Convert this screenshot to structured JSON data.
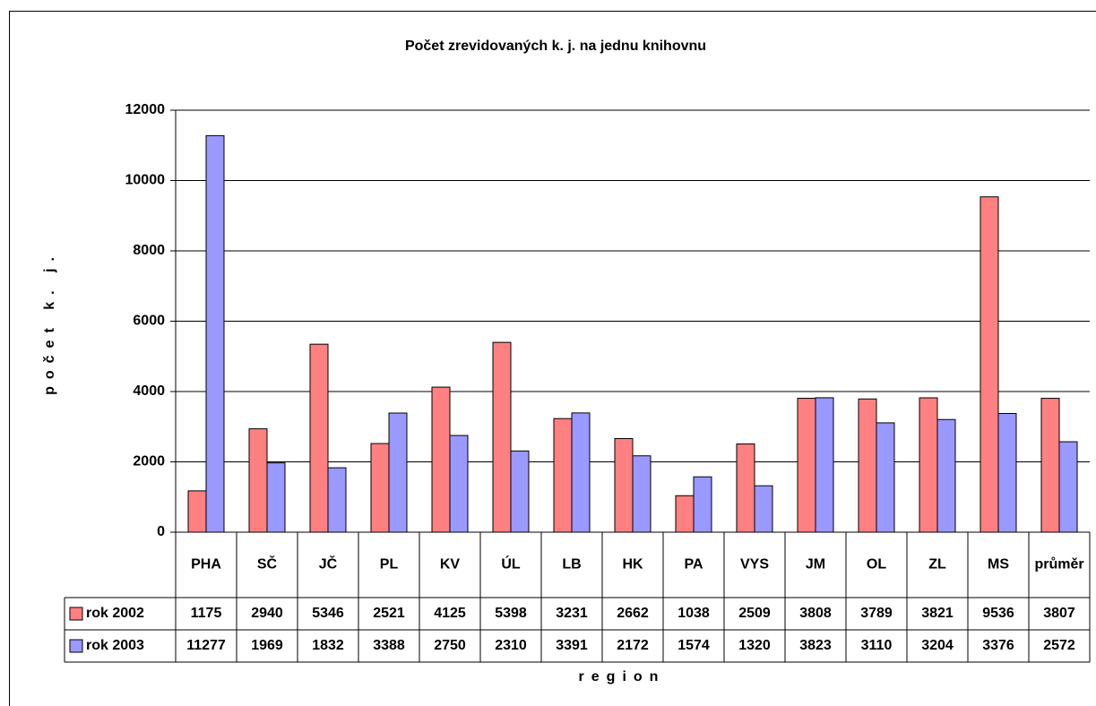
{
  "chart_data": {
    "type": "bar",
    "title": "Počet zrevidovaných k. j. na jednu knihovnu",
    "y_label": "počet k. j.",
    "x_label": "region",
    "categories": [
      "PHA",
      "SČ",
      "JČ",
      "PL",
      "KV",
      "ÚL",
      "LB",
      "HK",
      "PA",
      "VYS",
      "JM",
      "OL",
      "ZL",
      "MS",
      "průměr"
    ],
    "series": [
      {
        "name": "rok 2002",
        "color": "#ff8080",
        "values": [
          1175,
          2940,
          5346,
          2521,
          4125,
          5398,
          3231,
          2662,
          1038,
          2509,
          3808,
          3789,
          3821,
          9536,
          3807
        ]
      },
      {
        "name": "rok 2003",
        "color": "#9999ff",
        "values": [
          11277,
          1969,
          1832,
          3388,
          2750,
          2310,
          3391,
          2172,
          1574,
          1320,
          3823,
          3110,
          3204,
          3376,
          2572
        ]
      }
    ],
    "ylim": [
      0,
      12000
    ],
    "yticks": [
      0,
      2000,
      4000,
      6000,
      8000,
      10000,
      12000
    ],
    "grid": true,
    "data_table": true
  }
}
